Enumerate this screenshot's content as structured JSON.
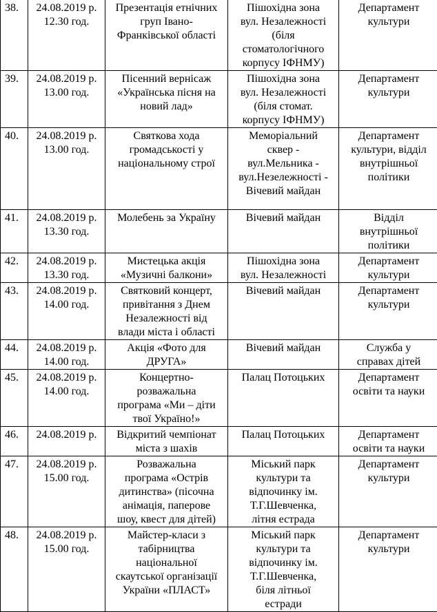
{
  "table": {
    "rows": [
      {
        "num": "38.",
        "date": "24.08.2019 р.\n12.30 год.",
        "event": "Презентація етнічних\nгруп Івано-\nФранківської області",
        "place": "Пішохідна зона\nвул. Незалежності\n(біля\nстоматологічного\nкорпусу ІФНМУ)",
        "org": "Департамент\nкультури"
      },
      {
        "num": "39.",
        "date": "24.08.2019 р.\n13.00 год.",
        "event": "Пісенний вернісаж\n«Українська пісня на\nновий лад»",
        "place": "Пішохідна зона\nвул. Незалежності\n(біля стомат.\nкорпусу ІФНМУ)",
        "org": "Департамент\nкультури"
      },
      {
        "num": "40.",
        "date": "24.08.2019 р.\n13.00 год.",
        "event": "Святкова хода\nгромадськості у\nнаціональному строї",
        "place": "Меморіальний\nсквер -\nвул.Мельника -\nвул.Незележності -\nВічевий майдан",
        "org": "Департамент\nкультури, відділ\nвнутрішньої\nполітики"
      },
      {
        "num": "41.",
        "date": "24.08.2019 р.\n13.30 год.",
        "event": "Молебень за Україну",
        "place": "Вічевий майдан",
        "org": "Відділ\nвнутрішньої\nполітики"
      },
      {
        "num": "42.",
        "date": "24.08.2019 р.\n13.30 год.",
        "event": "Мистецька акція\n«Музичні балкони»",
        "place": "Пішохідна зона\nвул. Незалежності",
        "org": "Департамент\nкультури"
      },
      {
        "num": "43.",
        "date": "24.08.2019 р.\n14.00 год.",
        "event": "Святковий концерт,\nпривітання з Днем\nНезалежності від\nвлади міста і області",
        "place": "Вічевий майдан",
        "org": "Департамент\nкультури"
      },
      {
        "num": "44.",
        "date": "24.08.2019 р.\n14.00 год.",
        "event": "Акція «Фото для\nДРУГА»",
        "place": "Вічевий майдан",
        "org": "Служба у\nсправах дітей"
      },
      {
        "num": "45.",
        "date": "24.08.2019 р.\n14.00 год.",
        "event": "Концертно-\nрозважальна\nпрограма «Ми – діти\nтвої Україно!»",
        "place": "Палац Потоцьких",
        "org": "Департамент\nосвіти та науки"
      },
      {
        "num": "46.",
        "date": "24.08.2019 р.",
        "event": "Відкритий чемпіонат\nміста з шахів",
        "place": "Палац Потоцьких",
        "org": "Департамент\nосвіти та науки"
      },
      {
        "num": "47.",
        "date": "24.08.2019 р.\n15.00 год.",
        "event": "Розважальна\nпрограма «Острів\nдитинства» (пісочна\nанімація, паперове\nшоу, квест для дітей)",
        "place": "Міський парк\nкультури та\nвідпочинку ім.\nТ.Г.Шевченка,\nлітня естрада",
        "org": "Департамент\nкультури"
      },
      {
        "num": "48.",
        "date": "24.08.2019 р.\n15.00 год.",
        "event": "Майстер-класи з\nтабірництва\nнаціональної\nскаутської організації\nУкраїни «ПЛАСТ»",
        "place": "Міський парк\nкультури та\nвідпочинку ім.\nТ.Г.Шевченка,\nбіля  літньої\nестради",
        "org": "Департамент\nкультури"
      }
    ]
  }
}
